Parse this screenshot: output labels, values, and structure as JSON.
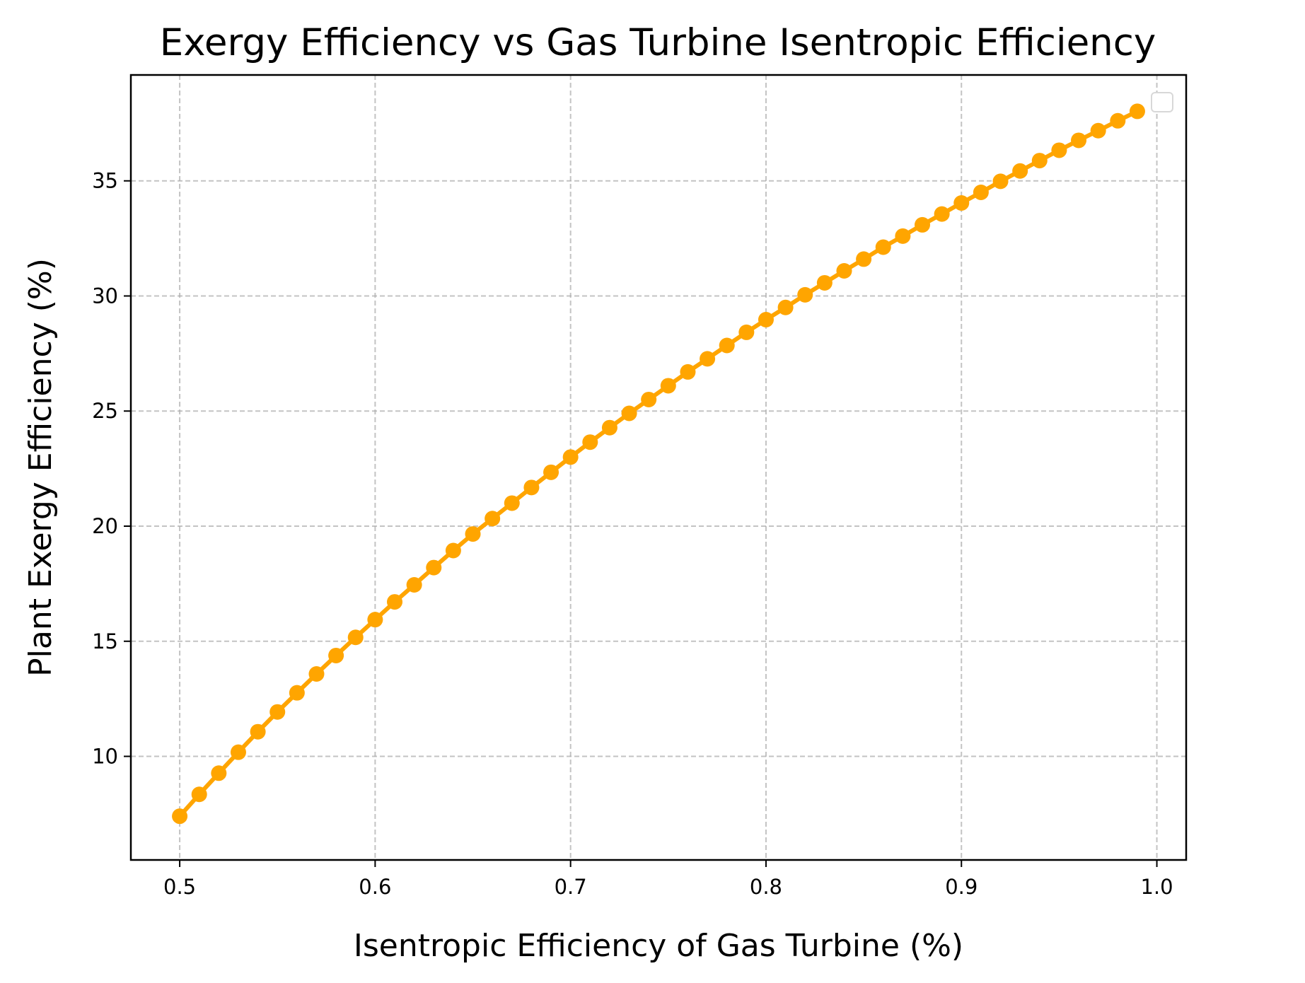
{
  "chart_data": {
    "type": "line",
    "title": "Exergy Efficiency vs Gas Turbine Isentropic Efficiency",
    "xlabel": "Isentropic Efficiency of Gas Turbine (%)",
    "ylabel": "Plant Exergy Efficiency (%)",
    "xlim": [
      0.475,
      1.015
    ],
    "ylim": [
      5.5,
      39.6
    ],
    "xticks": [
      0.5,
      0.6,
      0.7,
      0.8,
      0.9,
      1.0
    ],
    "xtick_labels": [
      "0.5",
      "0.6",
      "0.7",
      "0.8",
      "0.9",
      "1.0"
    ],
    "yticks": [
      10,
      15,
      20,
      25,
      30,
      35
    ],
    "ytick_labels": [
      "10",
      "15",
      "20",
      "25",
      "30",
      "35"
    ],
    "grid": true,
    "legend": {
      "location": "top-right",
      "entries": []
    },
    "series": [
      {
        "color": "#FFA500",
        "marker": "circle",
        "x": [
          0.5,
          0.51,
          0.52,
          0.53,
          0.54,
          0.55,
          0.56,
          0.57,
          0.58,
          0.59,
          0.6,
          0.61,
          0.62,
          0.63,
          0.64,
          0.65,
          0.66,
          0.67,
          0.68,
          0.69,
          0.7,
          0.71,
          0.72,
          0.73,
          0.74,
          0.75,
          0.76,
          0.77,
          0.78,
          0.79,
          0.8,
          0.81,
          0.82,
          0.83,
          0.84,
          0.85,
          0.86,
          0.87,
          0.88,
          0.89,
          0.9,
          0.91,
          0.92,
          0.93,
          0.94,
          0.95,
          0.96,
          0.97,
          0.98,
          0.99
        ],
        "y": [
          7.4,
          8.35,
          9.27,
          10.18,
          11.07,
          11.93,
          12.76,
          13.58,
          14.38,
          15.17,
          15.94,
          16.71,
          17.45,
          18.2,
          18.94,
          19.66,
          20.33,
          21.0,
          21.68,
          22.34,
          23.0,
          23.65,
          24.28,
          24.9,
          25.5,
          26.1,
          26.7,
          27.27,
          27.85,
          28.42,
          28.97,
          29.5,
          30.05,
          30.57,
          31.09,
          31.6,
          32.12,
          32.6,
          33.09,
          33.56,
          34.04,
          34.5,
          34.98,
          35.43,
          35.88,
          36.33,
          36.76,
          37.18,
          37.61,
          38.02
        ]
      }
    ]
  }
}
